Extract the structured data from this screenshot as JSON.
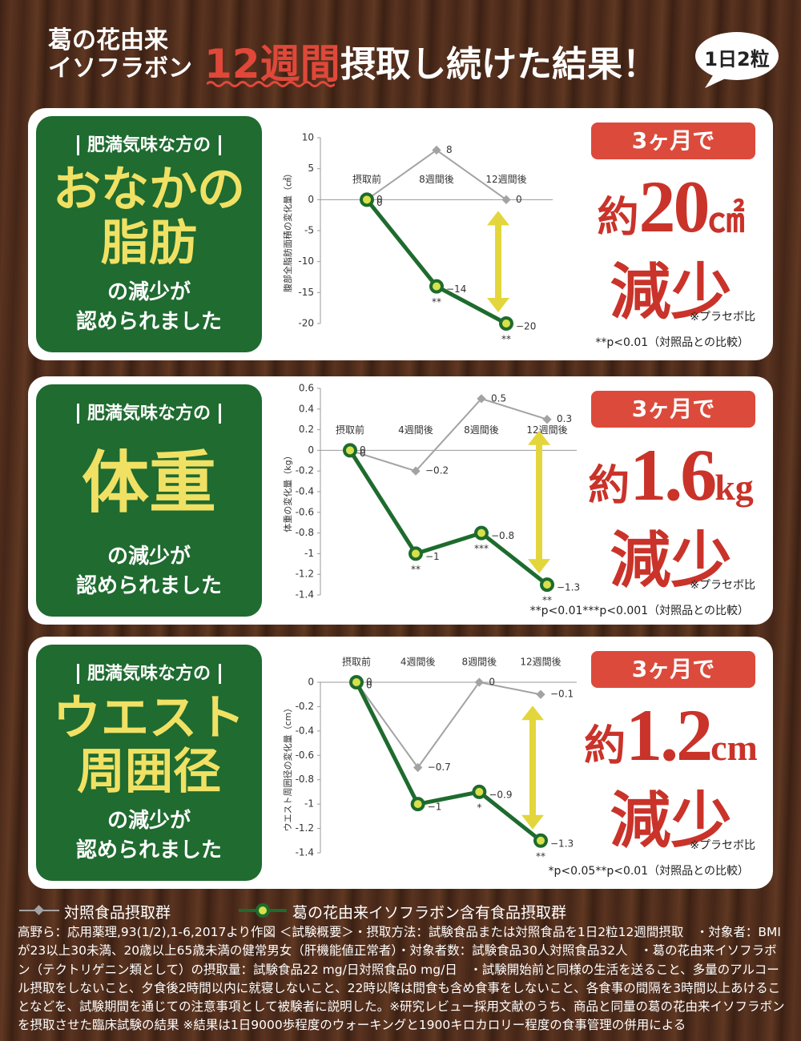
{
  "header": {
    "origin": [
      "葛の花由来",
      "イソフラボン"
    ],
    "weeks": "12週間",
    "result": "摂取し続けた結果！",
    "dose": "1日2粒"
  },
  "panels": [
    {
      "tag": "肥満気味な方の",
      "headline": [
        "おなかの",
        "脂肪"
      ],
      "sub": [
        "の減少が",
        "認められました"
      ],
      "badge": "3ヶ月で",
      "approx": "約",
      "amount": "20",
      "unit": "㎠",
      "reduce": "減少",
      "placebo": "※プラセボ比"
    },
    {
      "tag": "肥満気味な方の",
      "headline": [
        "体重"
      ],
      "sub": [
        "の減少が",
        "認められました"
      ],
      "badge": "3ヶ月で",
      "approx": "約",
      "amount": "1.6",
      "unit": "kg",
      "reduce": "減少",
      "placebo": "※プラセボ比"
    },
    {
      "tag": "肥満気味な方の",
      "headline": [
        "ウエスト",
        "周囲径"
      ],
      "sub": [
        "の減少が",
        "認められました"
      ],
      "badge": "3ヶ月で",
      "approx": "約",
      "amount": "1.2",
      "unit": "cm",
      "reduce": "減少",
      "placebo": "※プラセボ比"
    }
  ],
  "chart_data": [
    {
      "type": "line",
      "ylabel": "腹部全脂肪面積の変化量（㎠）",
      "categories": [
        "摂取前",
        "8週間後",
        "12週間後"
      ],
      "ylim": [
        -20,
        10
      ],
      "yticks": [
        10,
        5,
        0,
        -5,
        -10,
        -15,
        -20
      ],
      "series": [
        {
          "name": "対照食品摂取群",
          "color": "#a3a3a3",
          "values": [
            0,
            8,
            0
          ],
          "value_labels": [
            "0",
            "8",
            "0"
          ]
        },
        {
          "name": "葛の花由来イソフラボン含有食品摂取群",
          "color": "#1e6b2e",
          "values": [
            0,
            -14,
            -20
          ],
          "value_labels": [
            "0",
            "−14",
            "−20"
          ],
          "significance": [
            null,
            "**",
            "**"
          ]
        }
      ],
      "note": "**p<0.01（対照品との比較）"
    },
    {
      "type": "line",
      "ylabel": "体重の変化量（kg）",
      "categories": [
        "摂取前",
        "4週間後",
        "8週間後",
        "12週間後"
      ],
      "ylim": [
        -1.4,
        0.6
      ],
      "yticks": [
        0.6,
        0.4,
        0.2,
        0,
        -0.2,
        -0.4,
        -0.6,
        -0.8,
        -1,
        -1.2,
        -1.4
      ],
      "series": [
        {
          "name": "対照食品摂取群",
          "color": "#a3a3a3",
          "values": [
            0,
            -0.2,
            0.5,
            0.3
          ],
          "value_labels": [
            "0",
            "−0.2",
            "0.5",
            "0.3"
          ]
        },
        {
          "name": "葛の花由来イソフラボン含有食品摂取群",
          "color": "#1e6b2e",
          "values": [
            0,
            -1,
            -0.8,
            -1.3
          ],
          "value_labels": [
            "0",
            "−1",
            "−0.8",
            "−1.3"
          ],
          "significance": [
            null,
            "**",
            "***",
            "**"
          ]
        }
      ],
      "note": "**p<0.01***p<0.001（対照品との比較）"
    },
    {
      "type": "line",
      "ylabel": "ウエスト周囲径の変化量（cm）",
      "categories": [
        "摂取前",
        "4週間後",
        "8週間後",
        "12週間後"
      ],
      "ylim": [
        -1.4,
        0
      ],
      "yticks": [
        0,
        -0.2,
        -0.4,
        -0.6,
        -0.8,
        -1,
        -1.2,
        -1.4
      ],
      "series": [
        {
          "name": "対照食品摂取群",
          "color": "#a3a3a3",
          "values": [
            0,
            -0.7,
            0,
            -0.1
          ],
          "value_labels": [
            "0",
            "−0.7",
            "0",
            "−0.1"
          ]
        },
        {
          "name": "葛の花由来イソフラボン含有食品摂取群",
          "color": "#1e6b2e",
          "values": [
            0,
            -1,
            -0.9,
            -1.3
          ],
          "value_labels": [
            "0",
            "−1",
            "−0.9",
            "−1.3"
          ],
          "significance": [
            null,
            null,
            "*",
            "**"
          ]
        }
      ],
      "note": "*p<0.05**p<0.01（対照品との比較）"
    }
  ],
  "footnote": "高野ら：応用薬理,93(1/2),1-6,2017より作図 ＜試験概要＞・摂取方法：試験食品または対照食品を1日2粒12週間摂取　・対象者：BMIが23以上30未満、20歳以上65歳未満の健常男女（肝機能値正常者）・対象者数：試験食品30人対照食品32人　・葛の花由来イソフラボン（テクトリゲニン類として）の摂取量：試験食品22 mg/日対照食品0 mg/日　・試験開始前と同様の生活を送ること、多量のアルコール摂取をしないこと、夕食後2時間以内に就寝しないこと、22時以降は間食も含め食事をしないこと、各食事の間隔を3時間以上あけることなどを、試験期間を通じての注意事項として被験者に説明した。※研究レビュー採用文献のうち、商品と同量の葛の花由来イソフラボンを摂取させた臨床試験の結果 ※結果は1日9000歩程度のウォーキングと1900キロカロリー程度の食事管理の併用による"
}
